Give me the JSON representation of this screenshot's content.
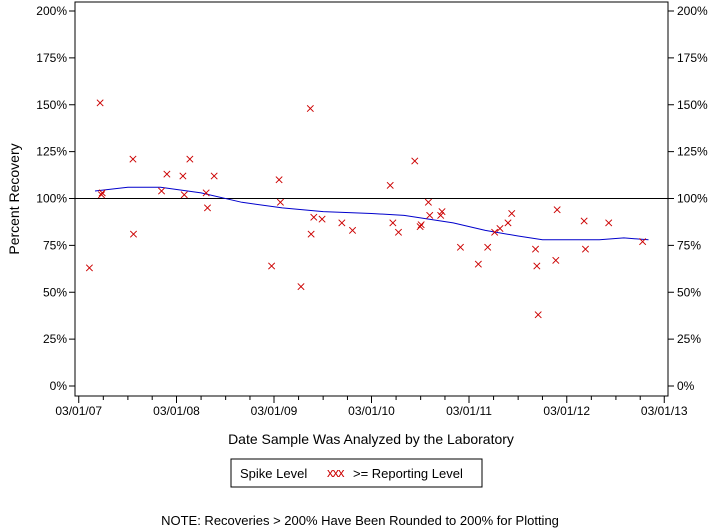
{
  "chart_data": {
    "type": "scatter",
    "xlabel": "Date Sample Was Analyzed by the Laboratory",
    "ylabel": "Percent Recovery",
    "note": "NOTE: Recoveries > 200% Have Been Rounded to 200% for Plotting",
    "x_ticks": [
      "03/01/07",
      "03/01/08",
      "03/01/09",
      "03/01/10",
      "03/01/11",
      "03/01/12",
      "03/01/13"
    ],
    "y_ticks": [
      "0%",
      "25%",
      "50%",
      "75%",
      "100%",
      "125%",
      "150%",
      "175%",
      "200%"
    ],
    "ylim": [
      0,
      200
    ],
    "xlim": [
      "2007-02-15",
      "2013-03-15"
    ],
    "reference_line": 100,
    "legend": {
      "spike_label": "Spike Level",
      "marker_glyph": "xxx",
      "reporting_label": ">= Reporting Level"
    },
    "series": [
      {
        "marker": "x",
        "color": "#cc0000",
        "points": [
          [
            "2007-04-10",
            63
          ],
          [
            "2007-05-20",
            151
          ],
          [
            "2007-05-25",
            102
          ],
          [
            "2007-05-28",
            103
          ],
          [
            "2007-09-20",
            121
          ],
          [
            "2007-09-22",
            81
          ],
          [
            "2008-01-05",
            104
          ],
          [
            "2008-01-25",
            113
          ],
          [
            "2008-03-25",
            112
          ],
          [
            "2008-03-30",
            102
          ],
          [
            "2008-04-20",
            121
          ],
          [
            "2008-06-20",
            103
          ],
          [
            "2008-06-25",
            95
          ],
          [
            "2008-07-20",
            112
          ],
          [
            "2009-02-20",
            64
          ],
          [
            "2009-03-20",
            110
          ],
          [
            "2009-03-25",
            98
          ],
          [
            "2009-06-10",
            53
          ],
          [
            "2009-07-15",
            148
          ],
          [
            "2009-07-18",
            81
          ],
          [
            "2009-07-28",
            90
          ],
          [
            "2009-08-28",
            89
          ],
          [
            "2009-11-10",
            87
          ],
          [
            "2009-12-20",
            83
          ],
          [
            "2010-05-10",
            107
          ],
          [
            "2010-05-20",
            87
          ],
          [
            "2010-06-10",
            82
          ],
          [
            "2010-08-10",
            120
          ],
          [
            "2010-08-30",
            85
          ],
          [
            "2010-09-03",
            86
          ],
          [
            "2010-09-30",
            98
          ],
          [
            "2010-10-05",
            91
          ],
          [
            "2010-11-15",
            91
          ],
          [
            "2010-11-20",
            93
          ],
          [
            "2011-01-28",
            74
          ],
          [
            "2011-04-05",
            65
          ],
          [
            "2011-05-10",
            74
          ],
          [
            "2011-06-05",
            82
          ],
          [
            "2011-06-25",
            84
          ],
          [
            "2011-07-25",
            87
          ],
          [
            "2011-08-08",
            92
          ],
          [
            "2011-11-05",
            73
          ],
          [
            "2011-11-10",
            64
          ],
          [
            "2011-11-15",
            38
          ],
          [
            "2012-01-20",
            67
          ],
          [
            "2012-01-25",
            94
          ],
          [
            "2012-05-05",
            88
          ],
          [
            "2012-05-10",
            73
          ],
          [
            "2012-08-05",
            87
          ],
          [
            "2012-12-10",
            77
          ]
        ]
      }
    ],
    "trend_line": {
      "color": "#0000cc",
      "points": [
        [
          "2007-05-01",
          104
        ],
        [
          "2007-09-01",
          106
        ],
        [
          "2008-01-01",
          106
        ],
        [
          "2008-06-01",
          103
        ],
        [
          "2008-11-01",
          98
        ],
        [
          "2009-04-01",
          95
        ],
        [
          "2009-09-01",
          93
        ],
        [
          "2010-03-01",
          92
        ],
        [
          "2010-07-01",
          91
        ],
        [
          "2011-01-01",
          87
        ],
        [
          "2011-05-01",
          83
        ],
        [
          "2011-09-01",
          80
        ],
        [
          "2011-12-01",
          78
        ],
        [
          "2012-03-01",
          78
        ],
        [
          "2012-07-01",
          78
        ],
        [
          "2012-10-01",
          79
        ],
        [
          "2013-01-01",
          78
        ]
      ]
    }
  }
}
